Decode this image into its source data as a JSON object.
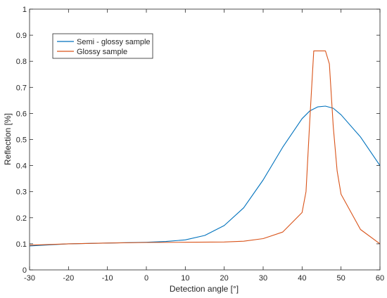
{
  "chart_data": {
    "type": "line",
    "xlabel": "Detection angle [°]",
    "ylabel": "Reflection [%]",
    "xlim": [
      -30,
      60
    ],
    "ylim": [
      0,
      1
    ],
    "xticks": [
      -30,
      -20,
      -10,
      0,
      10,
      20,
      30,
      40,
      50,
      60
    ],
    "yticks": [
      0,
      0.1,
      0.2,
      0.3,
      0.4,
      0.5,
      0.6,
      0.7,
      0.8,
      0.9,
      1
    ],
    "xtick_labels": [
      "-30",
      "-20",
      "-10",
      "0",
      "10",
      "20",
      "30",
      "40",
      "50",
      "60"
    ],
    "ytick_labels": [
      "0",
      "0.1",
      "0.2",
      "0.3",
      "0.4",
      "0.5",
      "0.6",
      "0.7",
      "0.8",
      "0.9",
      "1"
    ],
    "grid": true,
    "legend_position": "top-left",
    "series": [
      {
        "name": "Semi - glossy sample",
        "color": "#0072BD",
        "x": [
          -30,
          -20,
          -10,
          0,
          5,
          10,
          15,
          20,
          25,
          30,
          35,
          40,
          42,
          44,
          46,
          48,
          50,
          55,
          60
        ],
        "y": [
          0.092,
          0.1,
          0.103,
          0.106,
          0.109,
          0.115,
          0.132,
          0.17,
          0.238,
          0.345,
          0.47,
          0.58,
          0.61,
          0.625,
          0.628,
          0.62,
          0.595,
          0.51,
          0.4
        ]
      },
      {
        "name": "Glossy sample",
        "color": "#D95319",
        "x": [
          -30,
          -20,
          -10,
          0,
          10,
          20,
          25,
          30,
          35,
          40,
          41,
          42,
          43,
          44,
          45,
          46,
          47,
          48,
          49,
          50,
          55,
          60
        ],
        "y": [
          0.095,
          0.1,
          0.103,
          0.105,
          0.106,
          0.107,
          0.11,
          0.12,
          0.145,
          0.22,
          0.3,
          0.58,
          0.84,
          0.84,
          0.84,
          0.84,
          0.79,
          0.55,
          0.38,
          0.29,
          0.155,
          0.1
        ]
      }
    ]
  }
}
